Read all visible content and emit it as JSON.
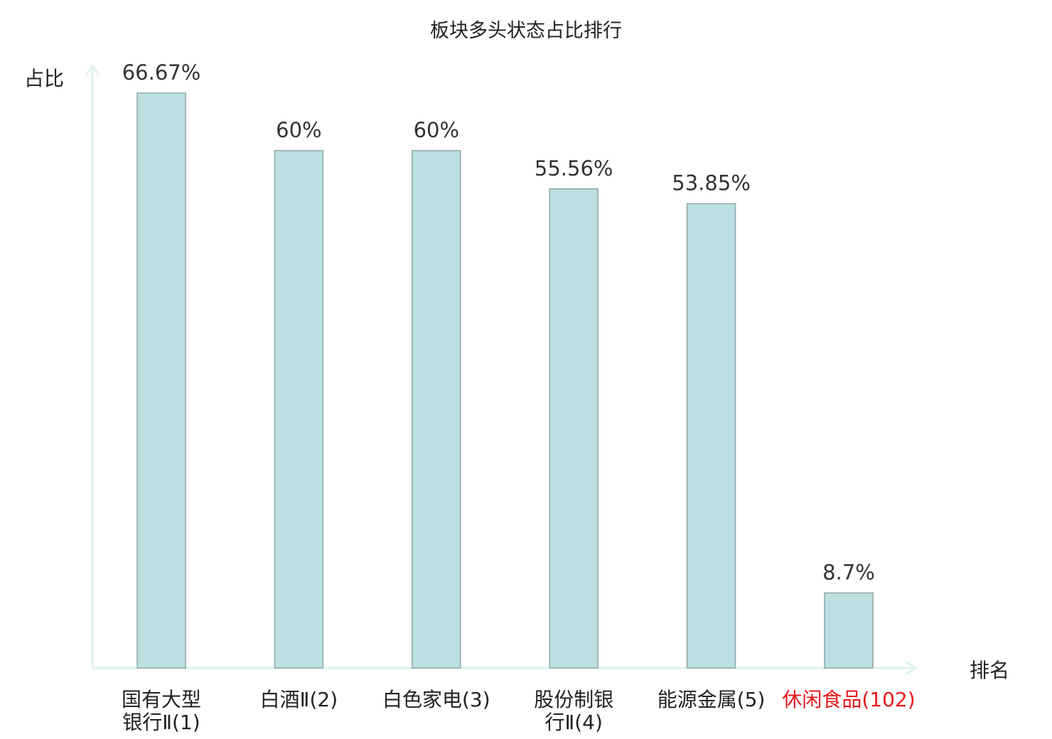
{
  "chart_data": {
    "type": "bar",
    "title": "板块多头状态占比排行",
    "ylabel": "占比",
    "xlabel": "排名",
    "ylim": [
      0,
      70
    ],
    "grid": false,
    "categories": [
      {
        "lines": [
          "国有大型",
          "银行Ⅱ(1)"
        ],
        "highlight": false
      },
      {
        "lines": [
          "白酒Ⅱ(2)"
        ],
        "highlight": false
      },
      {
        "lines": [
          "白色家电(3)"
        ],
        "highlight": false
      },
      {
        "lines": [
          "股份制银",
          "行Ⅱ(4)"
        ],
        "highlight": false
      },
      {
        "lines": [
          "能源金属(5)"
        ],
        "highlight": false
      },
      {
        "lines": [
          "休闲食品(102)"
        ],
        "highlight": true
      }
    ],
    "values": [
      66.67,
      60,
      60,
      55.56,
      53.85,
      8.7
    ],
    "value_labels": [
      "66.67%",
      "60%",
      "60%",
      "55.56%",
      "53.85%",
      "8.7%"
    ],
    "colors": {
      "bar_fill": "#bce0e2",
      "bar_stroke": "#8fa7a9",
      "axis": "#dff2ee",
      "label": "#222222",
      "highlight": "#e8171b"
    }
  }
}
